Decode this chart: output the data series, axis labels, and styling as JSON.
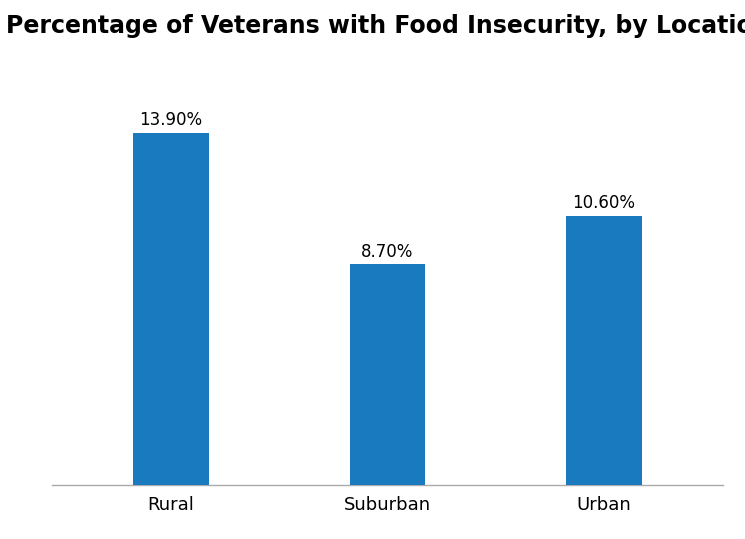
{
  "title": "Percentage of Veterans with Food Insecurity, by Location",
  "categories": [
    "Rural",
    "Suburban",
    "Urban"
  ],
  "values": [
    13.9,
    8.7,
    10.6
  ],
  "labels": [
    "13.90%",
    "8.70%",
    "10.60%"
  ],
  "bar_color": "#1a7abf",
  "background_color": "#ffffff",
  "title_fontsize": 17,
  "label_fontsize": 12,
  "tick_fontsize": 13,
  "ylim": [
    0,
    17
  ],
  "bar_width": 0.35
}
